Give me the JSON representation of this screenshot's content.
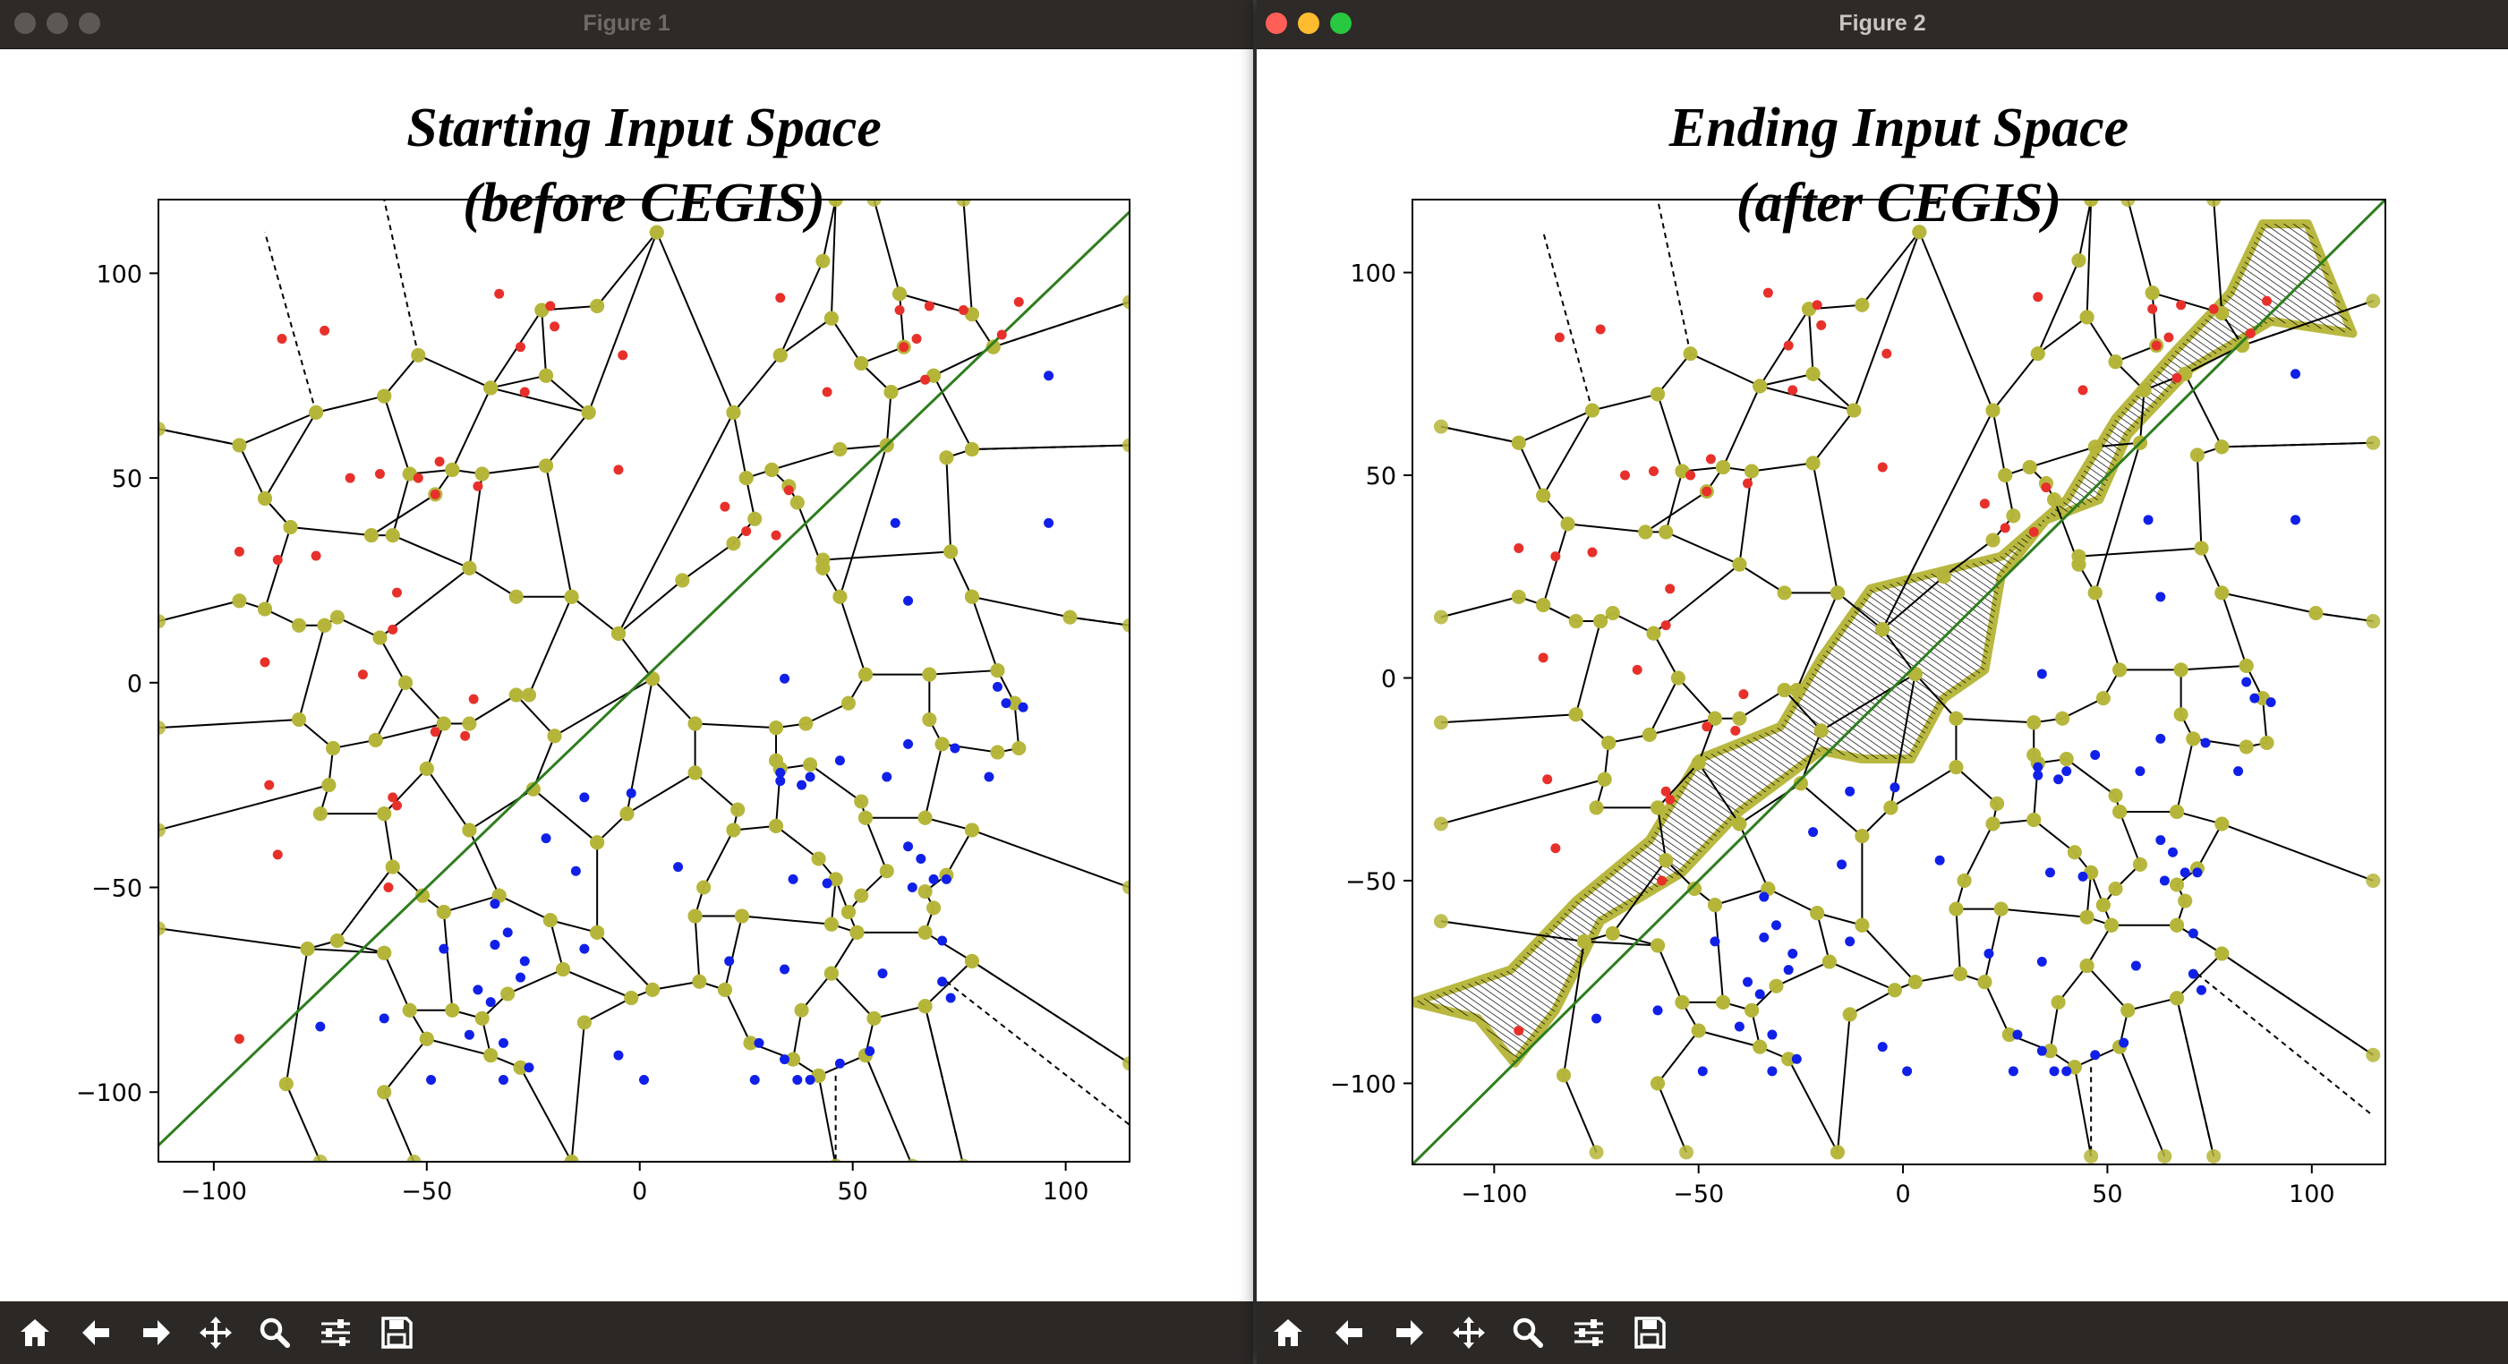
{
  "windows": [
    {
      "title": "Figure 1",
      "active": false,
      "plot_title_line1": "Starting Input Space",
      "plot_title_line2": "(before CEGIS)"
    },
    {
      "title": "Figure 2",
      "active": true,
      "plot_title_line1": "Ending Input Space",
      "plot_title_line2": "(after CEGIS)"
    }
  ],
  "toolbar": {
    "buttons": [
      {
        "name": "home",
        "icon": "home-icon"
      },
      {
        "name": "back",
        "icon": "arrow-left-icon"
      },
      {
        "name": "forward",
        "icon": "arrow-right-icon"
      },
      {
        "name": "pan",
        "icon": "move-icon"
      },
      {
        "name": "zoom",
        "icon": "magnifier-icon"
      },
      {
        "name": "configure-subplots",
        "icon": "sliders-icon"
      },
      {
        "name": "save",
        "icon": "floppy-disk-icon"
      }
    ]
  },
  "colors": {
    "red_points": "#e8302a",
    "blue_points": "#1020e8",
    "decision_line": "#2e7d1e",
    "vertex_markers": "#b5b53a",
    "edges": "#000000"
  },
  "chart_data": [
    {
      "type": "scatter",
      "title": "Starting Input Space\n(before CEGIS)",
      "xlim": [
        -113,
        115
      ],
      "ylim": [
        -117,
        118
      ],
      "xticks": [
        -100,
        -50,
        0,
        50,
        100
      ],
      "yticks": [
        -100,
        -50,
        0,
        50,
        100
      ],
      "xtick_labels": [
        "−100",
        "−50",
        "0",
        "50",
        "100"
      ],
      "ytick_labels": [
        "−100",
        "−50",
        "0",
        "50",
        "100"
      ],
      "decision_line": {
        "from": [
          -113,
          -113
        ],
        "to": [
          115,
          115
        ]
      },
      "red_points": [
        [
          -84,
          84
        ],
        [
          -74,
          86
        ],
        [
          -33,
          95
        ],
        [
          -21,
          92
        ],
        [
          -20,
          87
        ],
        [
          -28,
          82
        ],
        [
          -4,
          80
        ],
        [
          -27,
          71
        ],
        [
          -68,
          50
        ],
        [
          -61,
          51
        ],
        [
          -47,
          54
        ],
        [
          -52,
          50
        ],
        [
          -48,
          46
        ],
        [
          -38,
          48
        ],
        [
          -94,
          32
        ],
        [
          -85,
          30
        ],
        [
          -76,
          31
        ],
        [
          -57,
          22
        ],
        [
          -58,
          13
        ],
        [
          -88,
          5
        ],
        [
          -65,
          2
        ],
        [
          -39,
          -4
        ],
        [
          -48,
          -12
        ],
        [
          -41,
          -13
        ],
        [
          -87,
          -25
        ],
        [
          -58,
          -28
        ],
        [
          -57,
          -30
        ],
        [
          -85,
          -42
        ],
        [
          -59,
          -50
        ],
        [
          -94,
          -87
        ],
        [
          -5,
          52
        ],
        [
          33,
          94
        ],
        [
          44,
          71
        ],
        [
          61,
          91
        ],
        [
          65,
          84
        ],
        [
          68,
          92
        ],
        [
          76,
          91
        ],
        [
          89,
          93
        ],
        [
          62,
          82
        ],
        [
          67,
          74
        ],
        [
          85,
          85
        ],
        [
          20,
          43
        ],
        [
          35,
          47
        ],
        [
          25,
          37
        ],
        [
          32,
          36
        ]
      ],
      "blue_points": [
        [
          96,
          75
        ],
        [
          96,
          39
        ],
        [
          60,
          39
        ],
        [
          63,
          20
        ],
        [
          34,
          1
        ],
        [
          84,
          -1
        ],
        [
          86,
          -5
        ],
        [
          90,
          -6
        ],
        [
          82,
          -23
        ],
        [
          63,
          -15
        ],
        [
          74,
          -16
        ],
        [
          47,
          -19
        ],
        [
          58,
          -23
        ],
        [
          40,
          -23
        ],
        [
          33,
          -22
        ],
        [
          33,
          -24
        ],
        [
          38,
          -25
        ],
        [
          -13,
          -28
        ],
        [
          -2,
          -27
        ],
        [
          -22,
          -38
        ],
        [
          -15,
          -46
        ],
        [
          9,
          -45
        ],
        [
          36,
          -48
        ],
        [
          44,
          -49
        ],
        [
          63,
          -40
        ],
        [
          66,
          -43
        ],
        [
          69,
          -48
        ],
        [
          64,
          -50
        ],
        [
          72,
          -48
        ],
        [
          71,
          -63
        ],
        [
          -34,
          -54
        ],
        [
          -31,
          -61
        ],
        [
          -46,
          -65
        ],
        [
          -34,
          -64
        ],
        [
          -27,
          -68
        ],
        [
          -13,
          -65
        ],
        [
          -28,
          -72
        ],
        [
          -38,
          -75
        ],
        [
          -35,
          -78
        ],
        [
          -75,
          -84
        ],
        [
          -60,
          -82
        ],
        [
          -40,
          -86
        ],
        [
          -32,
          -88
        ],
        [
          21,
          -68
        ],
        [
          34,
          -70
        ],
        [
          57,
          -71
        ],
        [
          71,
          -73
        ],
        [
          73,
          -77
        ],
        [
          28,
          -88
        ],
        [
          34,
          -92
        ],
        [
          40,
          -97
        ],
        [
          54,
          -90
        ],
        [
          47,
          -93
        ],
        [
          -49,
          -97
        ],
        [
          -32,
          -97
        ],
        [
          -26,
          -94
        ],
        [
          -5,
          -91
        ],
        [
          1,
          -97
        ],
        [
          27,
          -97
        ],
        [
          37,
          -97
        ]
      ],
      "edges_description": "Voronoi diagram partition"
    },
    {
      "type": "scatter",
      "title": "Ending Input Space\n(after CEGIS)",
      "xlim": [
        -120,
        118
      ],
      "ylim": [
        -120,
        118
      ],
      "xticks": [
        -100,
        -50,
        0,
        50,
        100
      ],
      "yticks": [
        -100,
        -50,
        0,
        50,
        100
      ],
      "xtick_labels": [
        "−100",
        "−50",
        "0",
        "50",
        "100"
      ],
      "ytick_labels": [
        "−100",
        "−50",
        "0",
        "50",
        "100"
      ],
      "decision_line": {
        "from": [
          -120,
          -120
        ],
        "to": [
          118,
          118
        ]
      },
      "red_points": [
        [
          -84,
          84
        ],
        [
          -74,
          86
        ],
        [
          -33,
          95
        ],
        [
          -21,
          92
        ],
        [
          -20,
          87
        ],
        [
          -28,
          82
        ],
        [
          -4,
          80
        ],
        [
          -27,
          71
        ],
        [
          -68,
          50
        ],
        [
          -61,
          51
        ],
        [
          -47,
          54
        ],
        [
          -52,
          50
        ],
        [
          -48,
          46
        ],
        [
          -38,
          48
        ],
        [
          -94,
          32
        ],
        [
          -85,
          30
        ],
        [
          -76,
          31
        ],
        [
          -57,
          22
        ],
        [
          -58,
          13
        ],
        [
          -88,
          5
        ],
        [
          -65,
          2
        ],
        [
          -39,
          -4
        ],
        [
          -48,
          -12
        ],
        [
          -41,
          -13
        ],
        [
          -87,
          -25
        ],
        [
          -58,
          -28
        ],
        [
          -57,
          -30
        ],
        [
          -85,
          -42
        ],
        [
          -59,
          -50
        ],
        [
          -94,
          -87
        ],
        [
          -5,
          52
        ],
        [
          33,
          94
        ],
        [
          44,
          71
        ],
        [
          61,
          91
        ],
        [
          65,
          84
        ],
        [
          68,
          92
        ],
        [
          76,
          91
        ],
        [
          89,
          93
        ],
        [
          62,
          82
        ],
        [
          67,
          74
        ],
        [
          85,
          85
        ],
        [
          20,
          43
        ],
        [
          35,
          47
        ],
        [
          25,
          37
        ],
        [
          32,
          36
        ]
      ],
      "blue_points": [
        [
          96,
          75
        ],
        [
          96,
          39
        ],
        [
          60,
          39
        ],
        [
          63,
          20
        ],
        [
          34,
          1
        ],
        [
          84,
          -1
        ],
        [
          86,
          -5
        ],
        [
          90,
          -6
        ],
        [
          82,
          -23
        ],
        [
          63,
          -15
        ],
        [
          74,
          -16
        ],
        [
          47,
          -19
        ],
        [
          58,
          -23
        ],
        [
          40,
          -23
        ],
        [
          33,
          -22
        ],
        [
          33,
          -24
        ],
        [
          38,
          -25
        ],
        [
          -13,
          -28
        ],
        [
          -2,
          -27
        ],
        [
          -22,
          -38
        ],
        [
          -15,
          -46
        ],
        [
          9,
          -45
        ],
        [
          36,
          -48
        ],
        [
          44,
          -49
        ],
        [
          63,
          -40
        ],
        [
          66,
          -43
        ],
        [
          69,
          -48
        ],
        [
          64,
          -50
        ],
        [
          72,
          -48
        ],
        [
          71,
          -63
        ],
        [
          -34,
          -54
        ],
        [
          -31,
          -61
        ],
        [
          -46,
          -65
        ],
        [
          -34,
          -64
        ],
        [
          -27,
          -68
        ],
        [
          -13,
          -65
        ],
        [
          -28,
          -72
        ],
        [
          -38,
          -75
        ],
        [
          -35,
          -78
        ],
        [
          -75,
          -84
        ],
        [
          -60,
          -82
        ],
        [
          -40,
          -86
        ],
        [
          -32,
          -88
        ],
        [
          21,
          -68
        ],
        [
          34,
          -70
        ],
        [
          57,
          -71
        ],
        [
          71,
          -73
        ],
        [
          73,
          -77
        ],
        [
          28,
          -88
        ],
        [
          34,
          -92
        ],
        [
          40,
          -97
        ],
        [
          54,
          -90
        ],
        [
          47,
          -93
        ],
        [
          -49,
          -97
        ],
        [
          -32,
          -97
        ],
        [
          -26,
          -94
        ],
        [
          -5,
          -91
        ],
        [
          1,
          -97
        ],
        [
          27,
          -97
        ],
        [
          37,
          -97
        ]
      ],
      "edges_description": "Voronoi diagram partition with hatched uncertain region along the decision boundary"
    }
  ]
}
